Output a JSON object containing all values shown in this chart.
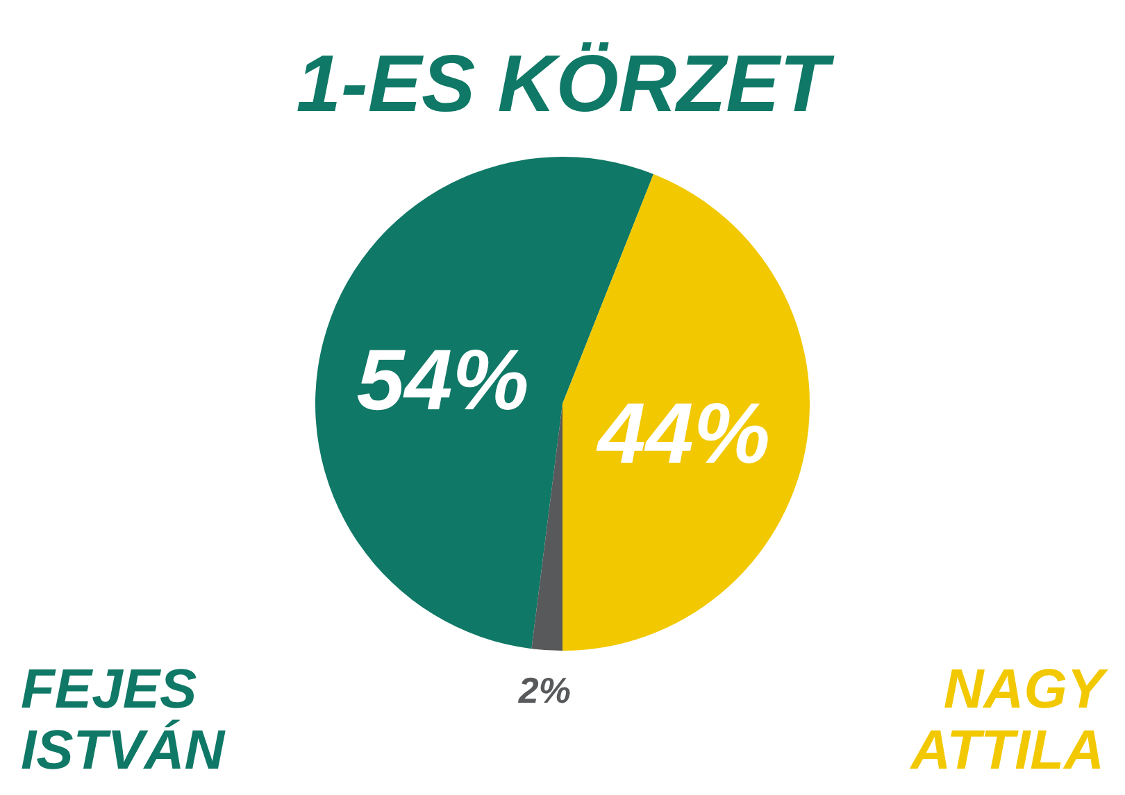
{
  "chart_data": {
    "type": "pie",
    "title": "1-ES KÖRZET",
    "categories": [
      "FEJES ISTVÁN",
      "NAGY ATTILA",
      null
    ],
    "values": [
      54,
      44,
      2
    ],
    "colors": [
      "#0f7866",
      "#f2c800",
      "#58595b"
    ],
    "value_labels": [
      "54%",
      "44%",
      "2%"
    ]
  }
}
